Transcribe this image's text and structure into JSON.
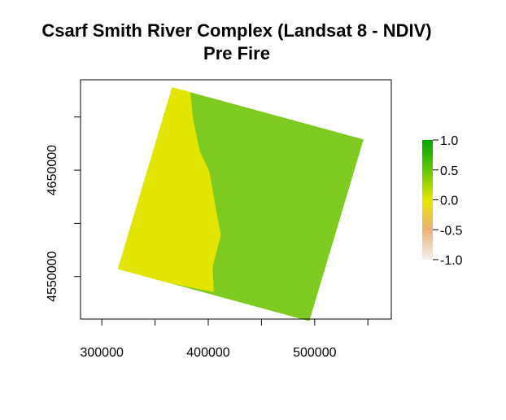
{
  "chart_data": {
    "type": "heatmap",
    "title_line1": "Csarf Smith River Complex (Landsat 8 - NDIV)",
    "title_line2": "Pre Fire",
    "xlabel": "",
    "ylabel": "",
    "x_ticks": [
      300000,
      350000,
      400000,
      450000,
      500000,
      550000
    ],
    "x_tick_labels": [
      "300000",
      "400000",
      "500000"
    ],
    "y_ticks": [
      4550000,
      4600000,
      4650000,
      4700000
    ],
    "y_tick_labels": [
      "4550000",
      "4650000"
    ],
    "xlim": [
      280000,
      572000
    ],
    "ylim": [
      4510000,
      4735000
    ],
    "scene_corners": [
      {
        "x": 366000,
        "y": 4728000
      },
      {
        "x": 546000,
        "y": 4679000
      },
      {
        "x": 495000,
        "y": 4508000
      },
      {
        "x": 315000,
        "y": 4557000
      }
    ],
    "legend": {
      "position": "right",
      "breaks": [
        1.0,
        0.5,
        0.0,
        -0.5,
        -1.0
      ],
      "labels": [
        "1.0",
        "0.5",
        "0.0",
        "-0.5",
        "-1.0"
      ],
      "colors": {
        "high": "#00a600",
        "mid_high": "#63c600",
        "zero": "#e6e600",
        "mid_low": "#ecb176",
        "low": "#f2f2f2"
      }
    },
    "regions": {
      "ocean_color": "#e3e400",
      "land_color": "#7dcc1f"
    }
  }
}
